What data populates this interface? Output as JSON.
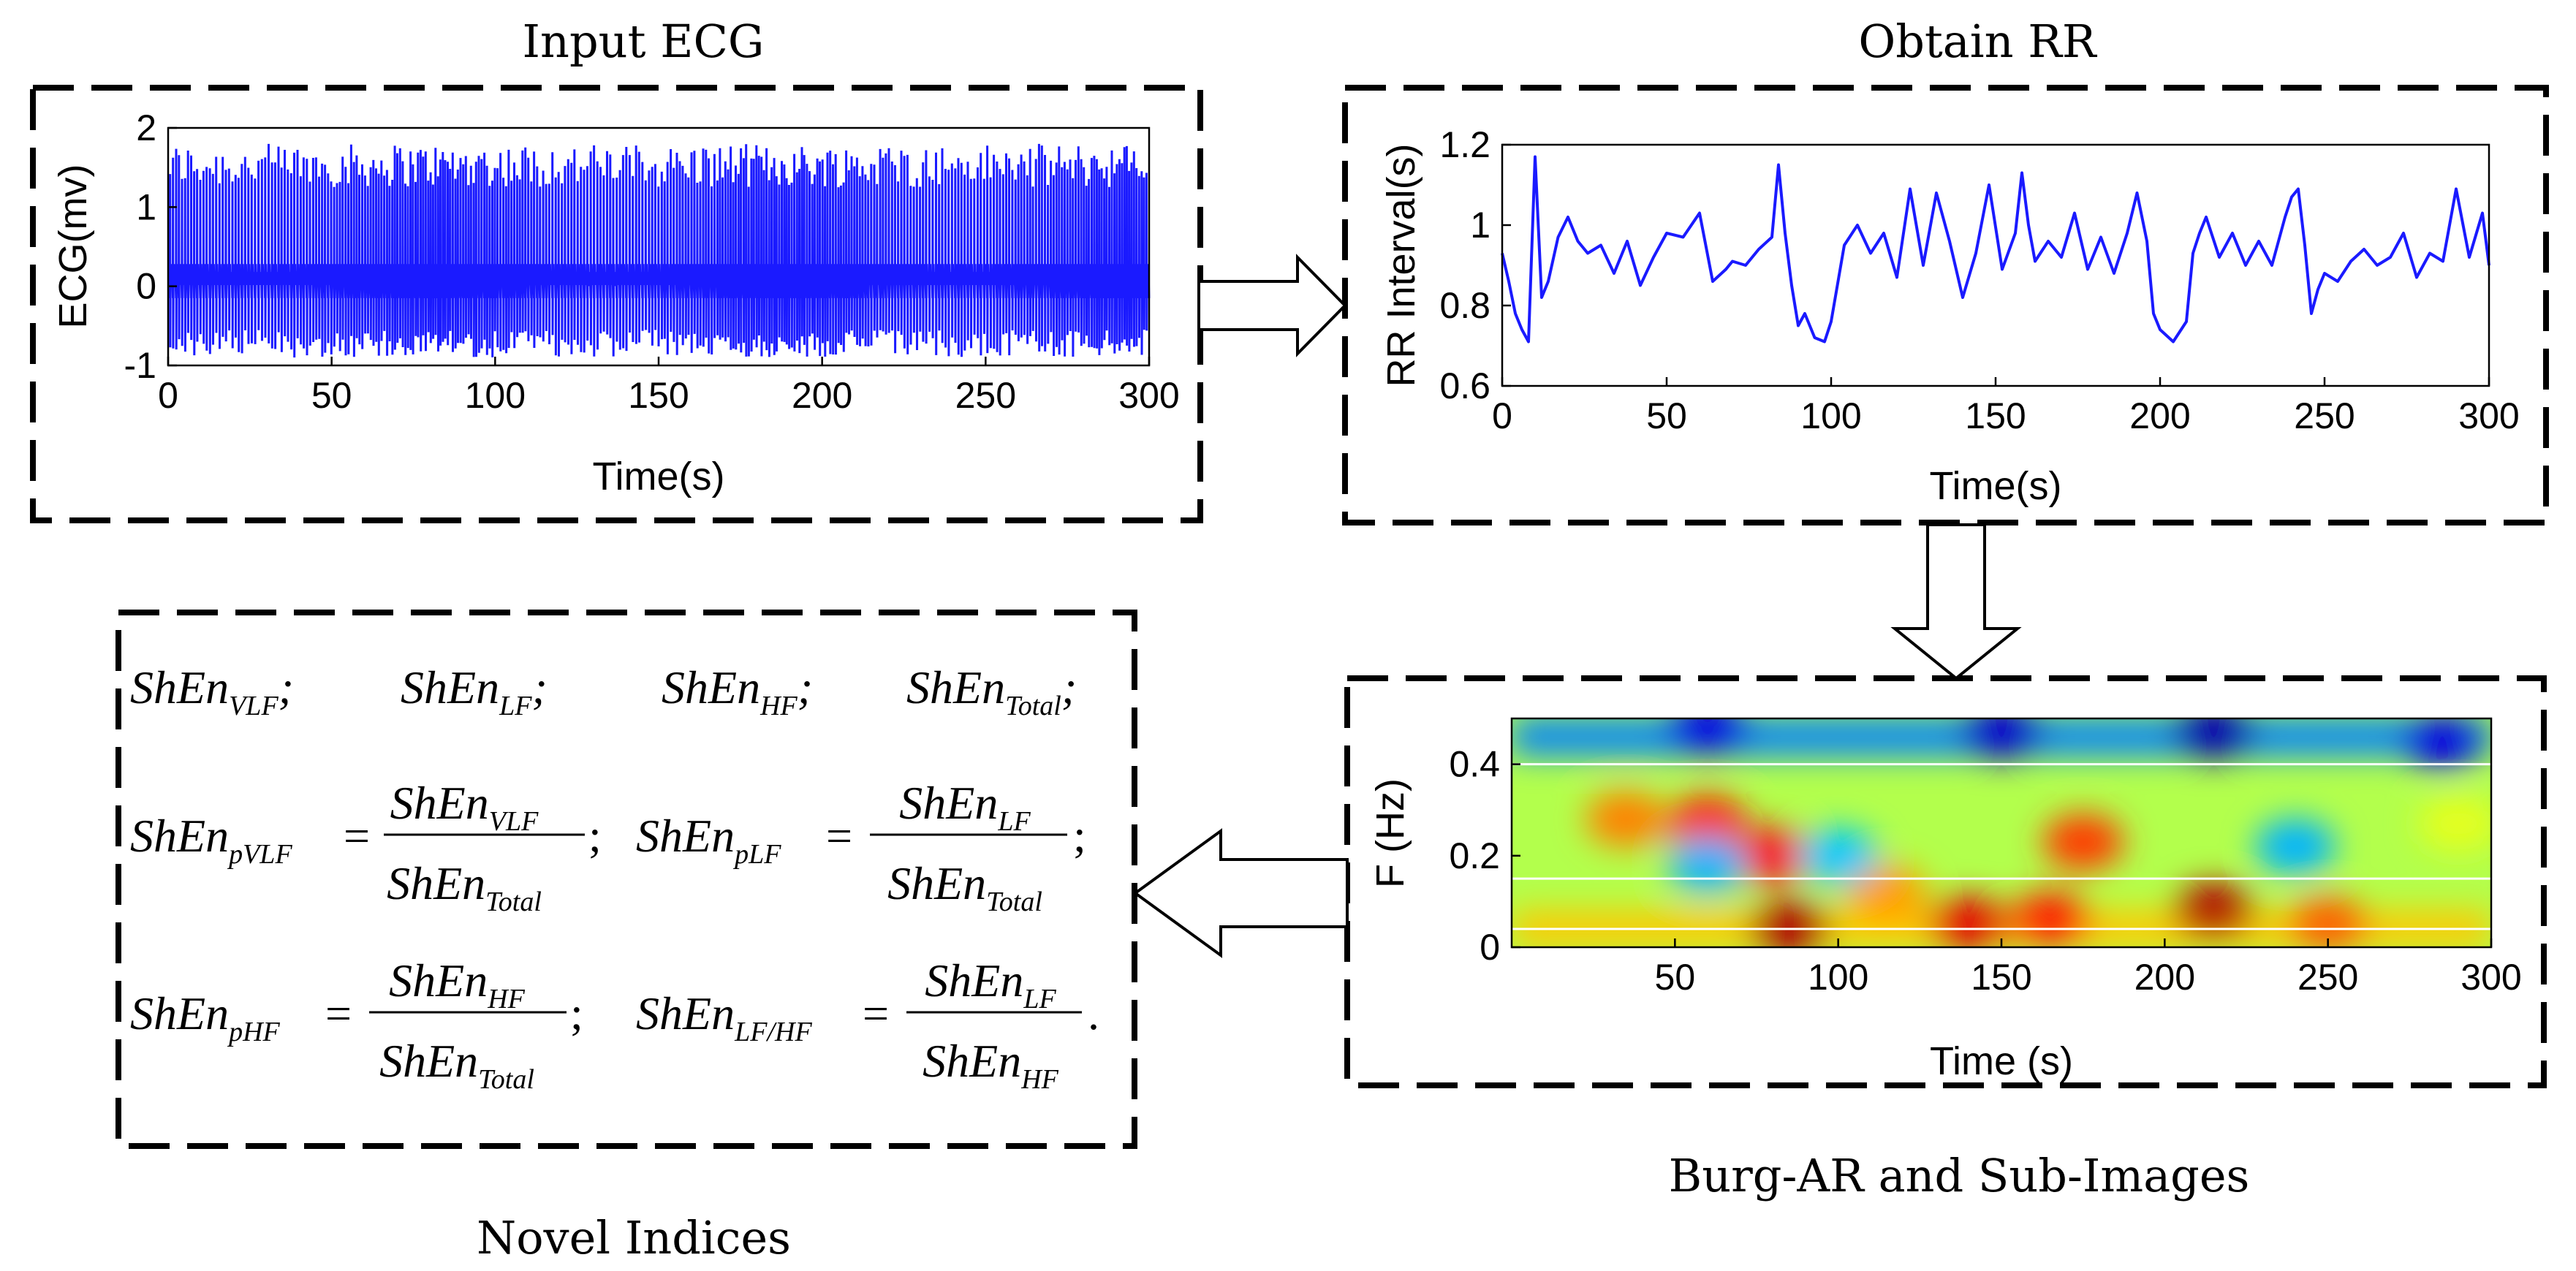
{
  "titles": {
    "input_ecg": "Input ECG",
    "obtain_rr": "Obtain RR",
    "burg_ar": "Burg-AR and Sub-Images",
    "novel_indices": "Novel Indices"
  },
  "colors": {
    "signal": "#1a1aff",
    "box_border": "#000000"
  },
  "chart_data": [
    {
      "id": "ecg",
      "type": "line",
      "title": "Input ECG",
      "xlabel": "Time(s)",
      "ylabel": "ECG(mv)",
      "xlim": [
        0,
        300
      ],
      "ylim": [
        -1,
        2
      ],
      "xticks": [
        "0",
        "50",
        "100",
        "150",
        "200",
        "250",
        "300"
      ],
      "yticks": [
        "-1",
        "0",
        "1",
        "2"
      ],
      "series": [
        {
          "name": "ECG",
          "description": "approx. 300 heartbeats; R-peaks ~1.2-1.9 mV, baseline ~0, troughs ~-0.9 mV"
        }
      ]
    },
    {
      "id": "rr",
      "type": "line",
      "title": "Obtain RR",
      "xlabel": "Time(s)",
      "ylabel": "RR Interval(s)",
      "xlim": [
        0,
        300
      ],
      "ylim": [
        0.6,
        1.2
      ],
      "xticks": [
        "0",
        "50",
        "100",
        "150",
        "200",
        "250",
        "300"
      ],
      "yticks": [
        "0.6",
        "0.8",
        "1",
        "1.2"
      ],
      "series": [
        {
          "name": "RR interval",
          "x": [
            0,
            2,
            4,
            6,
            8,
            10,
            12,
            14,
            17,
            20,
            23,
            26,
            30,
            34,
            38,
            42,
            46,
            50,
            55,
            60,
            64,
            68,
            70,
            74,
            78,
            82,
            84,
            86,
            88,
            90,
            92,
            95,
            98,
            100,
            104,
            108,
            112,
            116,
            120,
            124,
            128,
            132,
            136,
            140,
            144,
            148,
            152,
            156,
            158,
            160,
            162,
            166,
            170,
            174,
            178,
            182,
            186,
            190,
            193,
            196,
            198,
            200,
            204,
            208,
            210,
            212,
            214,
            218,
            222,
            226,
            230,
            234,
            238,
            240,
            242,
            244,
            246,
            248,
            250,
            254,
            258,
            262,
            266,
            270,
            274,
            278,
            282,
            286,
            290,
            294,
            298,
            300
          ],
          "y": [
            0.93,
            0.86,
            0.78,
            0.74,
            0.71,
            1.17,
            0.82,
            0.86,
            0.97,
            1.02,
            0.96,
            0.93,
            0.95,
            0.88,
            0.96,
            0.85,
            0.92,
            0.98,
            0.97,
            1.03,
            0.86,
            0.89,
            0.91,
            0.9,
            0.94,
            0.97,
            1.15,
            0.98,
            0.85,
            0.75,
            0.78,
            0.72,
            0.71,
            0.76,
            0.95,
            1.0,
            0.93,
            0.98,
            0.87,
            1.09,
            0.9,
            1.08,
            0.96,
            0.82,
            0.93,
            1.1,
            0.89,
            0.98,
            1.13,
            1.0,
            0.91,
            0.96,
            0.92,
            1.03,
            0.89,
            0.97,
            0.88,
            0.98,
            1.08,
            0.96,
            0.78,
            0.74,
            0.71,
            0.76,
            0.93,
            0.98,
            1.02,
            0.92,
            0.98,
            0.9,
            0.96,
            0.9,
            1.02,
            1.07,
            1.09,
            0.95,
            0.78,
            0.84,
            0.88,
            0.86,
            0.91,
            0.94,
            0.9,
            0.92,
            0.98,
            0.87,
            0.93,
            0.91,
            1.09,
            0.92,
            1.03,
            0.9
          ]
        }
      ]
    },
    {
      "id": "spectrogram",
      "type": "heatmap",
      "title": "Burg-AR and Sub-Images",
      "xlabel": "Time (s)",
      "ylabel": "F (Hz)",
      "xlim": [
        0,
        300
      ],
      "ylim": [
        0,
        0.5
      ],
      "xticks": [
        "50",
        "100",
        "150",
        "200",
        "250",
        "300"
      ],
      "yticks": [
        "0",
        "0.2",
        "0.4"
      ],
      "band_lines_hz": [
        0.04,
        0.15,
        0.4
      ],
      "blobs": [
        {
          "t": 35,
          "f": 0.28,
          "v": 0.75
        },
        {
          "t": 60,
          "f": 0.27,
          "v": 0.85
        },
        {
          "t": 85,
          "f": 0.04,
          "v": 0.95
        },
        {
          "t": 80,
          "f": 0.2,
          "v": 0.88
        },
        {
          "t": 115,
          "f": 0.12,
          "v": 0.72
        },
        {
          "t": 140,
          "f": 0.05,
          "v": 0.9
        },
        {
          "t": 165,
          "f": 0.06,
          "v": 0.85
        },
        {
          "t": 175,
          "f": 0.23,
          "v": 0.82
        },
        {
          "t": 215,
          "f": 0.08,
          "v": 0.95
        },
        {
          "t": 250,
          "f": 0.05,
          "v": 0.78
        },
        {
          "t": 290,
          "f": 0.27,
          "v": 0.6
        },
        {
          "t": 60,
          "f": 0.48,
          "v": 0.1
        },
        {
          "t": 150,
          "f": 0.47,
          "v": 0.08
        },
        {
          "t": 215,
          "f": 0.47,
          "v": 0.05
        },
        {
          "t": 285,
          "f": 0.45,
          "v": 0.1
        },
        {
          "t": 60,
          "f": 0.18,
          "v": 0.3
        },
        {
          "t": 100,
          "f": 0.2,
          "v": 0.32
        },
        {
          "t": 240,
          "f": 0.22,
          "v": 0.3
        }
      ]
    }
  ],
  "indices": {
    "row1": [
      {
        "base": "ShEn",
        "sub": "VLF"
      },
      {
        "base": "ShEn",
        "sub": "LF"
      },
      {
        "base": "ShEn",
        "sub": "HF"
      },
      {
        "base": "ShEn",
        "sub": "Total"
      }
    ],
    "row2": [
      {
        "lhs": "pVLF",
        "num": "VLF",
        "den": "Total",
        "end": ";"
      },
      {
        "lhs": "pLF",
        "num": "LF",
        "den": "Total",
        "end": ";"
      }
    ],
    "row3": [
      {
        "lhs": "pHF",
        "num": "HF",
        "den": "Total",
        "end": ";"
      },
      {
        "lhs": "LF/HF",
        "num": "LF",
        "den": "HF",
        "end": "."
      }
    ],
    "base": "ShEn",
    "sep": ";",
    "eq": "="
  }
}
